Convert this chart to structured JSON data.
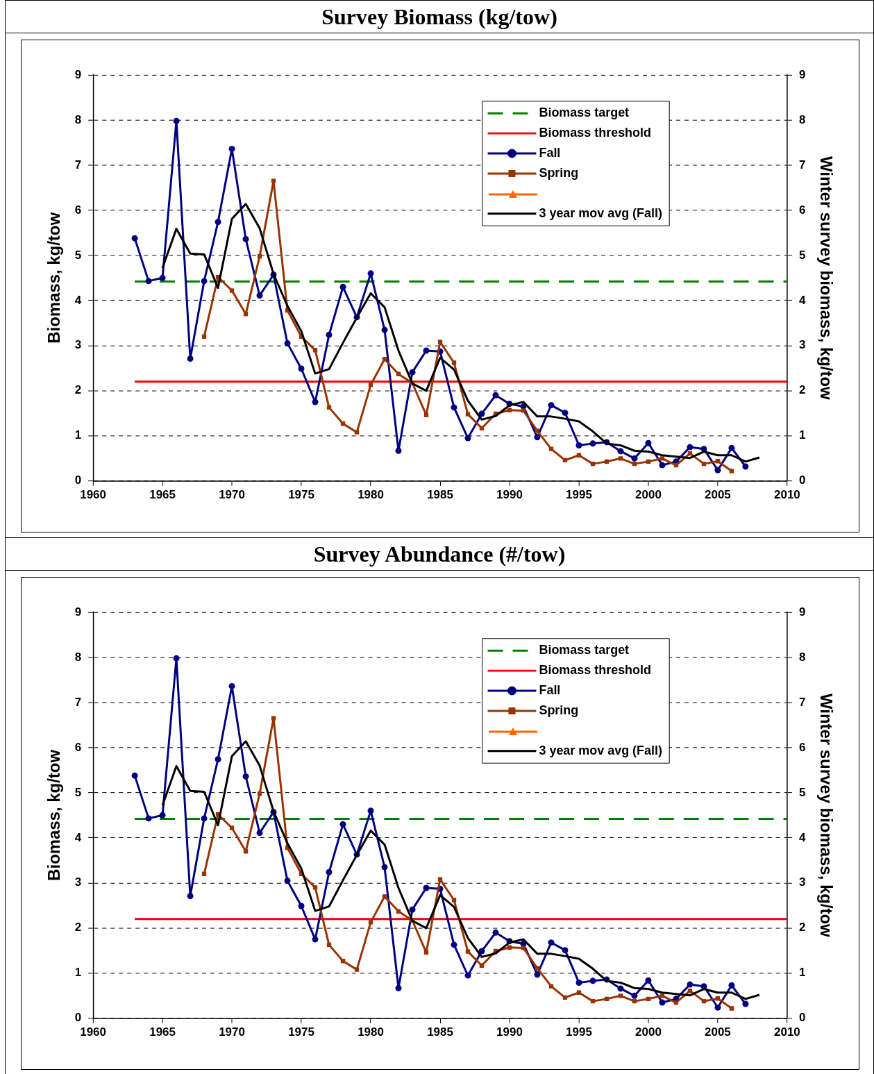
{
  "chart_data": [
    {
      "type": "line",
      "title": "Survey Biomass (kg/tow)",
      "ylabel": "Biomass, kg/tow",
      "y2label": "Winter survey biomass, kg/tow",
      "xlim": [
        1960,
        2010
      ],
      "xticks": [
        1960,
        1965,
        1970,
        1975,
        1980,
        1985,
        1990,
        1995,
        2000,
        2005,
        2010
      ],
      "ylim": [
        0,
        9
      ],
      "yticks": [
        0,
        1,
        2,
        3,
        4,
        5,
        6,
        7,
        8,
        9
      ],
      "y2lim": [
        0,
        9
      ],
      "y2ticks": [
        0,
        1,
        2,
        3,
        4,
        5,
        6,
        7,
        8,
        9
      ],
      "grid": "y",
      "legend": "top right",
      "series": [
        {
          "name": "Biomass target",
          "type": "line",
          "color": "#008000",
          "line_style": "dashed",
          "marker": "none",
          "x": [
            1963,
            2010
          ],
          "values": [
            4.42,
            4.42
          ]
        },
        {
          "name": "Biomass threshold",
          "type": "line",
          "color": "#ff0000",
          "line_style": "solid",
          "marker": "none",
          "x": [
            1963,
            2010
          ],
          "values": [
            2.2,
            2.2
          ]
        },
        {
          "name": "Fall",
          "type": "line",
          "color": "#000080",
          "line_style": "solid",
          "marker": "circle",
          "x": [
            1963,
            1964,
            1965,
            1966,
            1967,
            1968,
            1969,
            1970,
            1971,
            1972,
            1973,
            1974,
            1975,
            1976,
            1977,
            1978,
            1979,
            1980,
            1981,
            1982,
            1983,
            1984,
            1985,
            1986,
            1987,
            1988,
            1989,
            1990,
            1991,
            1992,
            1993,
            1994,
            1995,
            1996,
            1997,
            1998,
            1999,
            2000,
            2001,
            2002,
            2003,
            2004,
            2005,
            2006,
            2007
          ],
          "values": [
            5.38,
            4.43,
            4.5,
            7.98,
            2.71,
            4.43,
            5.74,
            7.36,
            5.36,
            4.11,
            4.57,
            3.05,
            2.49,
            1.75,
            3.24,
            4.3,
            3.63,
            4.6,
            3.35,
            0.67,
            2.41,
            2.89,
            2.87,
            1.63,
            0.95,
            1.49,
            1.9,
            1.71,
            1.65,
            0.97,
            1.68,
            1.51,
            0.79,
            0.83,
            0.86,
            0.66,
            0.5,
            0.84,
            0.35,
            0.43,
            0.75,
            0.71,
            0.24,
            0.73,
            0.32
          ]
        },
        {
          "name": "Spring",
          "type": "line",
          "color": "#993300",
          "line_style": "solid",
          "marker": "square",
          "x": [
            1968,
            1969,
            1970,
            1971,
            1972,
            1973,
            1974,
            1975,
            1976,
            1977,
            1978,
            1979,
            1980,
            1981,
            1982,
            1983,
            1984,
            1985,
            1986,
            1987,
            1988,
            1989,
            1990,
            1991,
            1992,
            1993,
            1994,
            1995,
            1996,
            1997,
            1998,
            1999,
            2000,
            2001,
            2002,
            2003,
            2004,
            2005,
            2006
          ],
          "values": [
            3.2,
            4.52,
            4.22,
            3.7,
            4.98,
            6.65,
            3.78,
            3.2,
            2.9,
            1.63,
            1.27,
            1.08,
            2.13,
            2.7,
            2.37,
            2.17,
            1.46,
            3.08,
            2.62,
            1.48,
            1.17,
            1.49,
            1.57,
            1.56,
            1.11,
            0.71,
            0.46,
            0.57,
            0.38,
            0.43,
            0.5,
            0.38,
            0.43,
            0.5,
            0.35,
            0.61,
            0.38,
            0.44,
            0.22
          ]
        },
        {
          "type": "line",
          "color": "#ff6600",
          "line_style": "solid",
          "marker": "triangle"
        },
        {
          "name": "3 year mov avg (Fall)",
          "type": "line",
          "color": "#000000",
          "line_style": "solid",
          "marker": "none",
          "x": [
            1965,
            1966,
            1967,
            1968,
            1969,
            1970,
            1971,
            1972,
            1973,
            1974,
            1975,
            1976,
            1977,
            1978,
            1979,
            1980,
            1981,
            1982,
            1983,
            1984,
            1985,
            1986,
            1987,
            1988,
            1989,
            1990,
            1991,
            1992,
            1993,
            1994,
            1995,
            1996,
            1997,
            1998,
            1999,
            2000,
            2001,
            2002,
            2003,
            2004,
            2005,
            2006,
            2007,
            2008
          ],
          "values": [
            4.72,
            5.59,
            5.04,
            5.02,
            4.28,
            5.81,
            6.14,
            5.6,
            4.59,
            3.88,
            3.32,
            2.38,
            2.48,
            3.06,
            3.62,
            4.16,
            3.85,
            2.89,
            2.16,
            2.0,
            2.73,
            2.47,
            1.78,
            1.36,
            1.44,
            1.68,
            1.75,
            1.43,
            1.43,
            1.38,
            1.32,
            1.1,
            0.83,
            0.79,
            0.67,
            0.65,
            0.57,
            0.54,
            0.51,
            0.65,
            0.57,
            0.57,
            0.43,
            0.52
          ]
        }
      ]
    },
    {
      "type": "line",
      "title": "Survey Abundance (#/tow)",
      "ylabel": "Biomass, kg/tow",
      "y2label": "Winter survey biomass, kg/tow",
      "xlim": [
        1960,
        2010
      ],
      "xticks": [
        1960,
        1965,
        1970,
        1975,
        1980,
        1985,
        1990,
        1995,
        2000,
        2005,
        2010
      ],
      "ylim": [
        0,
        9
      ],
      "yticks": [
        0,
        1,
        2,
        3,
        4,
        5,
        6,
        7,
        8,
        9
      ],
      "y2lim": [
        0,
        9
      ],
      "y2ticks": [
        0,
        1,
        2,
        3,
        4,
        5,
        6,
        7,
        8,
        9
      ],
      "grid": "y",
      "legend": "top right",
      "series": [
        {
          "name": "Biomass target",
          "type": "line",
          "color": "#008000",
          "line_style": "dashed",
          "marker": "none",
          "x": [
            1963,
            2010
          ],
          "values": [
            4.42,
            4.42
          ]
        },
        {
          "name": "Biomass threshold",
          "type": "line",
          "color": "#ff0000",
          "line_style": "solid",
          "marker": "none",
          "x": [
            1963,
            2010
          ],
          "values": [
            2.2,
            2.2
          ]
        },
        {
          "name": "Fall",
          "type": "line",
          "color": "#000080",
          "line_style": "solid",
          "marker": "circle",
          "x": [
            1963,
            1964,
            1965,
            1966,
            1967,
            1968,
            1969,
            1970,
            1971,
            1972,
            1973,
            1974,
            1975,
            1976,
            1977,
            1978,
            1979,
            1980,
            1981,
            1982,
            1983,
            1984,
            1985,
            1986,
            1987,
            1988,
            1989,
            1990,
            1991,
            1992,
            1993,
            1994,
            1995,
            1996,
            1997,
            1998,
            1999,
            2000,
            2001,
            2002,
            2003,
            2004,
            2005,
            2006,
            2007
          ],
          "values": [
            5.38,
            4.43,
            4.5,
            7.98,
            2.71,
            4.43,
            5.74,
            7.36,
            5.36,
            4.11,
            4.57,
            3.05,
            2.49,
            1.75,
            3.24,
            4.3,
            3.63,
            4.6,
            3.35,
            0.67,
            2.41,
            2.89,
            2.87,
            1.63,
            0.95,
            1.49,
            1.9,
            1.71,
            1.65,
            0.97,
            1.68,
            1.51,
            0.79,
            0.83,
            0.86,
            0.66,
            0.5,
            0.84,
            0.35,
            0.43,
            0.75,
            0.71,
            0.24,
            0.73,
            0.32
          ]
        },
        {
          "name": "Spring",
          "type": "line",
          "color": "#993300",
          "line_style": "solid",
          "marker": "square",
          "x": [
            1968,
            1969,
            1970,
            1971,
            1972,
            1973,
            1974,
            1975,
            1976,
            1977,
            1978,
            1979,
            1980,
            1981,
            1982,
            1983,
            1984,
            1985,
            1986,
            1987,
            1988,
            1989,
            1990,
            1991,
            1992,
            1993,
            1994,
            1995,
            1996,
            1997,
            1998,
            1999,
            2000,
            2001,
            2002,
            2003,
            2004,
            2005,
            2006
          ],
          "values": [
            3.2,
            4.52,
            4.22,
            3.7,
            4.98,
            6.65,
            3.78,
            3.2,
            2.9,
            1.63,
            1.27,
            1.08,
            2.13,
            2.7,
            2.37,
            2.17,
            1.46,
            3.08,
            2.62,
            1.48,
            1.17,
            1.49,
            1.57,
            1.56,
            1.11,
            0.71,
            0.46,
            0.57,
            0.38,
            0.43,
            0.5,
            0.38,
            0.43,
            0.5,
            0.35,
            0.61,
            0.38,
            0.44,
            0.22
          ]
        },
        {
          "type": "line",
          "color": "#ff6600",
          "line_style": "solid",
          "marker": "triangle"
        },
        {
          "name": "3 year mov avg (Fall)",
          "type": "line",
          "color": "#000000",
          "line_style": "solid",
          "marker": "none",
          "x": [
            1965,
            1966,
            1967,
            1968,
            1969,
            1970,
            1971,
            1972,
            1973,
            1974,
            1975,
            1976,
            1977,
            1978,
            1979,
            1980,
            1981,
            1982,
            1983,
            1984,
            1985,
            1986,
            1987,
            1988,
            1989,
            1990,
            1991,
            1992,
            1993,
            1994,
            1995,
            1996,
            1997,
            1998,
            1999,
            2000,
            2001,
            2002,
            2003,
            2004,
            2005,
            2006,
            2007,
            2008
          ],
          "values": [
            4.72,
            5.59,
            5.04,
            5.02,
            4.28,
            5.81,
            6.14,
            5.6,
            4.59,
            3.88,
            3.32,
            2.38,
            2.48,
            3.06,
            3.62,
            4.16,
            3.85,
            2.89,
            2.16,
            2.0,
            2.73,
            2.47,
            1.78,
            1.36,
            1.44,
            1.68,
            1.75,
            1.43,
            1.43,
            1.38,
            1.32,
            1.1,
            0.83,
            0.79,
            0.67,
            0.65,
            0.57,
            0.54,
            0.51,
            0.65,
            0.57,
            0.57,
            0.43,
            0.52
          ]
        }
      ]
    }
  ]
}
